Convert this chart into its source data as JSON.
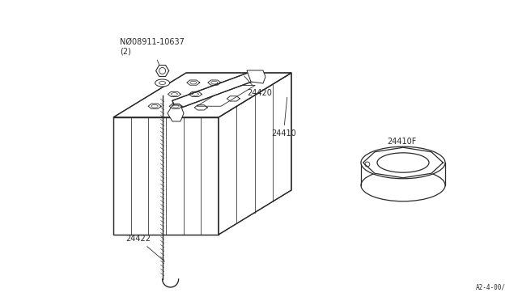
{
  "bg_color": "#ffffff",
  "line_color": "#2a2a2a",
  "part_number_bottom_right": "A2-4-00/",
  "labels": {
    "N08911": "NØ08911-10637\n(2)",
    "p24420": "24420",
    "p24410": "24410",
    "p24422": "24422",
    "p24410F": "24410F"
  },
  "font_size_label": 7.0,
  "font_size_partnum": 5.5
}
